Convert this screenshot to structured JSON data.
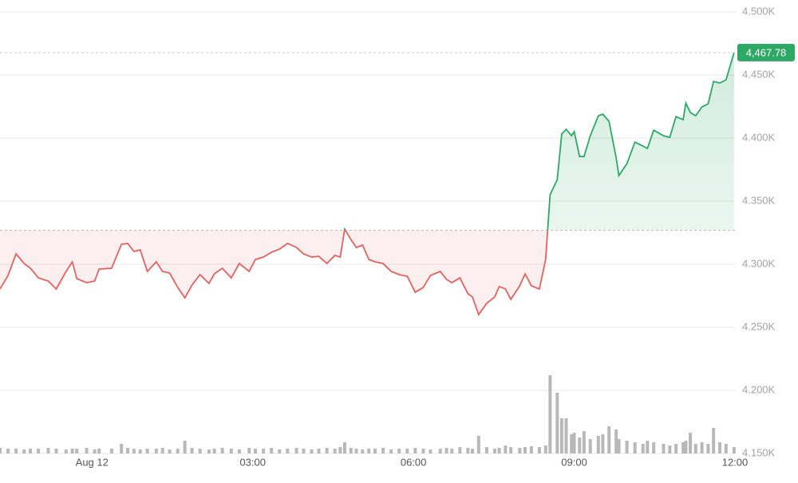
{
  "chart_data": {
    "type": "line",
    "x": [
      -103,
      -94,
      -85,
      -76,
      -69,
      -60,
      -49,
      -40,
      -29,
      -22,
      -17,
      -6,
      3,
      8,
      22,
      33,
      40,
      47,
      54,
      62,
      72,
      79,
      87,
      96,
      104,
      112,
      121,
      131,
      137,
      146,
      156,
      165,
      176,
      183,
      192,
      201,
      210,
      219,
      229,
      237,
      246,
      254,
      263,
      272,
      278,
      283,
      290,
      296,
      303,
      310,
      317,
      326,
      335,
      344,
      353,
      362,
      371,
      379,
      390,
      397,
      403,
      412,
      421,
      426,
      433,
      442,
      451,
      456,
      463,
      469,
      479,
      485,
      492,
      501,
      508,
      513,
      521,
      526,
      531,
      537,
      540,
      546,
      551,
      558,
      567,
      572,
      579,
      587,
      590,
      599,
      608,
      617,
      622,
      629,
      640,
      647,
      654,
      662,
      665,
      670,
      676,
      683,
      690,
      696,
      703,
      710,
      719
    ],
    "values": [
      4280.4,
      4291.1,
      4308.2,
      4300.6,
      4296.8,
      4289.2,
      4286.7,
      4280.4,
      4294.3,
      4301.9,
      4288.6,
      4285.4,
      4286.7,
      4296.2,
      4296.8,
      4315.8,
      4316.5,
      4310.1,
      4311.4,
      4294.3,
      4301.9,
      4294.3,
      4293.0,
      4281.6,
      4273.4,
      4283.5,
      4291.8,
      4284.8,
      4292.4,
      4296.8,
      4289.2,
      4300.6,
      4294.3,
      4303.8,
      4305.7,
      4309.5,
      4312.0,
      4316.5,
      4313.3,
      4308.2,
      4305.7,
      4306.3,
      4300.6,
      4307.0,
      4305.7,
      4327.8,
      4319.6,
      4313.3,
      4315.2,
      4303.8,
      4301.9,
      4300.6,
      4294.3,
      4291.8,
      4290.5,
      4277.8,
      4281.6,
      4291.1,
      4294.3,
      4288.0,
      4285.4,
      4289.2,
      4276.6,
      4274.1,
      4260.1,
      4269.0,
      4274.1,
      4282.3,
      4280.4,
      4272.2,
      4282.9,
      4292.4,
      4282.9,
      4280.4,
      4303.8,
      4355.1,
      4367.1,
      4403.2,
      4407.0,
      4401.9,
      4405.1,
      4385.4,
      4385.4,
      4401.9,
      4417.7,
      4419.0,
      4413.3,
      4384.2,
      4370.3,
      4379.7,
      4396.8,
      4393.7,
      4391.8,
      4406.3,
      4401.9,
      4400.6,
      4417.1,
      4414.6,
      4427.8,
      4420.3,
      4417.7,
      4424.7,
      4427.2,
      4444.9,
      4443.7,
      4446.2,
      4467.78
    ],
    "last_label": "4,467.78",
    "volume": [
      7,
      6,
      6,
      5,
      6,
      6,
      7,
      6,
      5,
      6,
      6,
      7,
      5,
      6,
      6,
      12,
      7,
      6,
      5,
      6,
      6,
      7,
      5,
      6,
      16,
      7,
      6,
      5,
      6,
      7,
      6,
      5,
      7,
      6,
      6,
      7,
      5,
      6,
      7,
      6,
      5,
      6,
      7,
      6,
      8,
      14,
      7,
      6,
      5,
      6,
      6,
      7,
      5,
      6,
      6,
      7,
      6,
      5,
      6,
      7,
      6,
      8,
      7,
      6,
      22,
      8,
      6,
      7,
      10,
      8,
      7,
      8,
      9,
      8,
      10,
      98,
      76,
      44,
      44,
      24,
      26,
      20,
      28,
      18,
      22,
      24,
      34,
      30,
      18,
      16,
      14,
      12,
      16,
      14,
      12,
      10,
      12,
      14,
      16,
      26,
      12,
      14,
      12,
      32,
      14,
      12,
      8
    ],
    "baseline": 4327,
    "colors": {
      "up": "#2ea865",
      "down": "#e5615f",
      "volume": "#b8b8b8"
    },
    "xlim": [
      -103,
      720
    ],
    "xticks": [
      {
        "value": 0,
        "label": "Aug 12"
      },
      {
        "value": 180,
        "label": "03:00"
      },
      {
        "value": 360,
        "label": "06:00"
      },
      {
        "value": 540,
        "label": "09:00"
      },
      {
        "value": 720,
        "label": "12:00"
      }
    ],
    "ylim": [
      4150,
      4500
    ],
    "yticks": [
      {
        "value": 4150,
        "label": "4.150K"
      },
      {
        "value": 4200,
        "label": "4.200K"
      },
      {
        "value": 4250,
        "label": "4.250K"
      },
      {
        "value": 4300,
        "label": "4.300K"
      },
      {
        "value": 4350,
        "label": "4.350K"
      },
      {
        "value": 4400,
        "label": "4.400K"
      },
      {
        "value": 4450,
        "label": "4.450K"
      },
      {
        "value": 4500,
        "label": "4.500K"
      }
    ],
    "y2lim": [
      0,
      120
    ],
    "grid": true
  }
}
